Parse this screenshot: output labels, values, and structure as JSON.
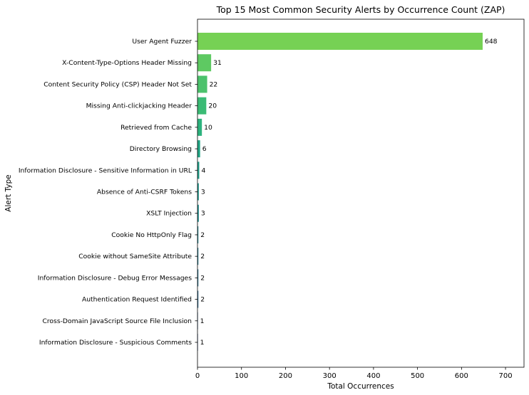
{
  "chart_data": {
    "type": "bar",
    "orientation": "horizontal",
    "title": "Top 15 Most Common Security Alerts by Occurrence Count (ZAP)",
    "xlabel": "Total Occurrences",
    "ylabel": "Alert Type",
    "xlim": [
      0,
      742
    ],
    "xticks": [
      0,
      100,
      200,
      300,
      400,
      500,
      600,
      700
    ],
    "grid": false,
    "categories": [
      "User Agent Fuzzer",
      "X-Content-Type-Options Header Missing",
      "Content Security Policy (CSP) Header Not Set",
      "Missing Anti-clickjacking Header",
      "Retrieved from Cache",
      "Directory Browsing",
      "Information Disclosure - Sensitive Information in URL",
      "Absence of Anti-CSRF Tokens",
      "XSLT Injection",
      "Cookie No HttpOnly Flag",
      "Cookie without SameSite Attribute",
      "Information Disclosure - Debug Error Messages",
      "Authentication Request Identified",
      "Cross-Domain JavaScript Source File Inclusion",
      "Information Disclosure - Suspicious Comments"
    ],
    "values": [
      648,
      31,
      22,
      20,
      10,
      6,
      4,
      3,
      3,
      2,
      2,
      2,
      2,
      1,
      1
    ],
    "colors": [
      "#76d154",
      "#5ec962",
      "#4cc26c",
      "#3bbb75",
      "#2db27d",
      "#21a685",
      "#1f9e89",
      "#1f968b",
      "#228d8d",
      "#25848e",
      "#287c8e",
      "#2c738e",
      "#306a8e",
      "#355f8d",
      "#3a548c"
    ]
  }
}
